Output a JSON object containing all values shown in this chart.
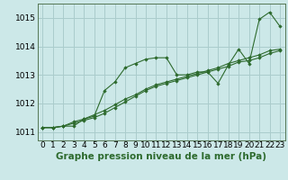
{
  "bg_color": "#cce8e8",
  "grid_color": "#aacccc",
  "line_color": "#2d6a2d",
  "marker_color": "#2d6a2d",
  "xlabel": "Graphe pression niveau de la mer (hPa)",
  "xlabel_fontsize": 7.5,
  "tick_fontsize": 6.5,
  "xlim": [
    -0.5,
    23.5
  ],
  "ylim": [
    1010.7,
    1015.5
  ],
  "yticks": [
    1011,
    1012,
    1013,
    1014,
    1015
  ],
  "xticks": [
    0,
    1,
    2,
    3,
    4,
    5,
    6,
    7,
    8,
    9,
    10,
    11,
    12,
    13,
    14,
    15,
    16,
    17,
    18,
    19,
    20,
    21,
    22,
    23
  ],
  "series": [
    [
      1011.15,
      1011.15,
      1011.2,
      1011.2,
      1011.45,
      1011.55,
      1012.45,
      1012.75,
      1013.25,
      1013.4,
      1013.55,
      1013.6,
      1013.6,
      1013.0,
      1013.0,
      1013.1,
      1013.1,
      1012.7,
      1013.35,
      1013.9,
      1013.4,
      1014.95,
      1015.2,
      1014.7
    ],
    [
      1011.15,
      1011.15,
      1011.2,
      1011.35,
      1011.45,
      1011.6,
      1011.75,
      1011.95,
      1012.15,
      1012.3,
      1012.5,
      1012.65,
      1012.75,
      1012.85,
      1012.95,
      1013.05,
      1013.15,
      1013.25,
      1013.4,
      1013.5,
      1013.6,
      1013.7,
      1013.85,
      1013.9
    ],
    [
      1011.15,
      1011.15,
      1011.2,
      1011.3,
      1011.4,
      1011.5,
      1011.65,
      1011.85,
      1012.05,
      1012.25,
      1012.45,
      1012.6,
      1012.7,
      1012.8,
      1012.9,
      1013.0,
      1013.1,
      1013.2,
      1013.3,
      1013.45,
      1013.5,
      1013.6,
      1013.75,
      1013.85
    ]
  ]
}
